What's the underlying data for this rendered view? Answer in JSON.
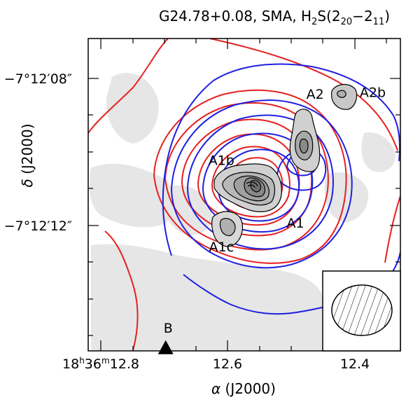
{
  "chart_data": {
    "type": "contour",
    "title": {
      "main": "G24.78+0.08, SMA, H",
      "sub1": "2",
      "mid": "S(2",
      "sub2": "20",
      "dash": "−",
      "mid2": "2",
      "sub3": "11",
      "close": ")"
    },
    "xaxis": {
      "symbol": "α",
      "label": " (J2000)",
      "ticks": [
        {
          "h": "18",
          "m": "36",
          "s": "12.8",
          "value": 12.8,
          "first": true
        },
        {
          "s": "12.6",
          "value": 12.6
        },
        {
          "s": "12.4",
          "value": 12.4
        }
      ],
      "range_sec": [
        12.8474,
        12.3543
      ]
    },
    "yaxis": {
      "symbol": "δ",
      "label": " (J2000)",
      "ticks": [
        {
          "text": "−7°12′08″",
          "value": 8
        },
        {
          "text": "−7°12′12″",
          "value": 12
        }
      ],
      "range_arcsec": [
        6.95,
        15.43
      ]
    },
    "labels": [
      {
        "text": "A2",
        "ra": 12.489,
        "dec": 8.45
      },
      {
        "text": "A2b",
        "ra": 12.398,
        "dec": 8.4
      },
      {
        "text": "A1b",
        "ra": 12.637,
        "dec": 10.25
      },
      {
        "text": "A1",
        "ra": 12.52,
        "dec": 11.95
      },
      {
        "text": "A1c",
        "ra": 12.637,
        "dec": 12.6
      },
      {
        "text": "B",
        "ra": 12.721,
        "dec": 14.8
      }
    ],
    "marker": {
      "type": "triangle",
      "ra": 12.725,
      "dec": 15.35
    },
    "beam": "hatched-ellipse",
    "series": [
      {
        "color": "#e62020",
        "line": "solid"
      },
      {
        "color": "#2020e0",
        "line": "solid"
      },
      {
        "color": "#000000",
        "line": "filled-gray"
      }
    ]
  }
}
